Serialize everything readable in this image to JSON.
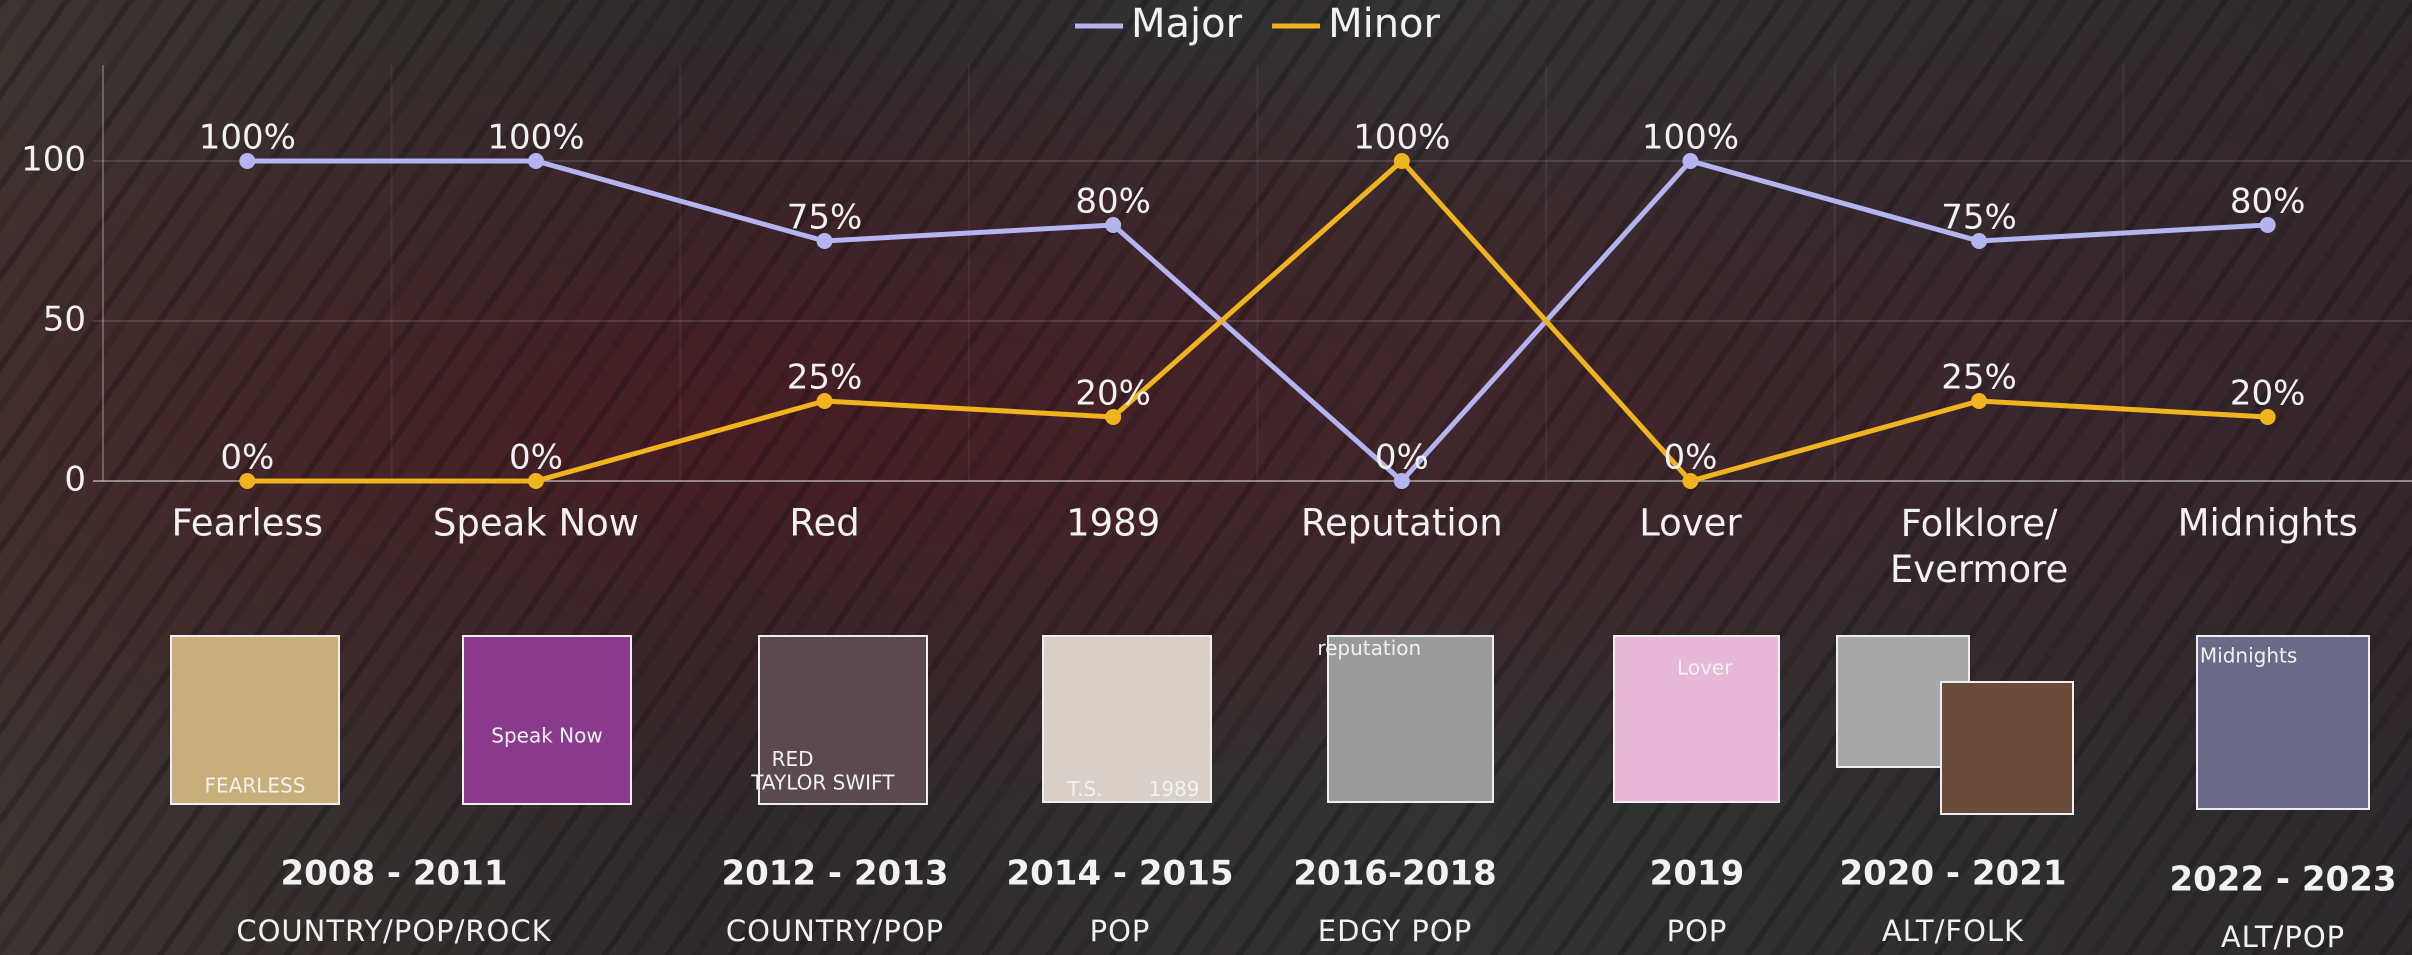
{
  "chart_data": {
    "type": "line",
    "categories": [
      "Fearless",
      "Speak Now",
      "Red",
      "1989",
      "Reputation",
      "Lover",
      "Folklore/\nEvermore",
      "Midnights"
    ],
    "series": [
      {
        "name": "Major",
        "color": "#b4b4f0",
        "values": [
          100,
          100,
          75,
          80,
          0,
          100,
          75,
          80
        ],
        "value_labels": [
          "100%",
          "100%",
          "75%",
          "80%",
          "0%",
          "100%",
          "75%",
          "80%"
        ]
      },
      {
        "name": "Minor",
        "color": "#f0b41e",
        "values": [
          0,
          0,
          25,
          20,
          100,
          0,
          25,
          20
        ],
        "value_labels": [
          "0%",
          "0%",
          "25%",
          "20%",
          "100%",
          "0%",
          "25%",
          "20%"
        ]
      }
    ],
    "ylim": [
      0,
      130
    ],
    "yticks": [
      0,
      50,
      100
    ],
    "grid": true,
    "legend": "top"
  },
  "covers": [
    {
      "texts": [
        "FEARLESS"
      ],
      "color": "#c8ae7a"
    },
    {
      "texts": [
        "Speak Now"
      ],
      "color": "#8a3a8c"
    },
    {
      "texts": [
        "RED",
        "TAYLOR SWIFT"
      ],
      "color": "#5a4a50"
    },
    {
      "texts": [
        "T.S.",
        "1989"
      ],
      "color": "#d8d0c8"
    },
    {
      "texts": [
        "reputation"
      ],
      "color": "#9a9a9a"
    },
    {
      "texts": [
        "Lover"
      ],
      "color": "#e8b8d8"
    },
    {
      "texts": [],
      "color": "#a8a8a8"
    },
    {
      "texts": [],
      "color": "#6a4a38"
    },
    {
      "texts": [
        "Midnights"
      ],
      "color": "#6a6a88"
    }
  ],
  "eras": [
    {
      "years": "2008 - 2011",
      "genre": "COUNTRY/POP/ROCK"
    },
    {
      "years": "2012 - 2013",
      "genre": "COUNTRY/POP"
    },
    {
      "years": "2014 - 2015",
      "genre": "POP"
    },
    {
      "years": "2016-2018",
      "genre": "EDGY POP"
    },
    {
      "years": "2019",
      "genre": "POP"
    },
    {
      "years": "2020 - 2021",
      "genre": "ALT/FOLK"
    },
    {
      "years": "2022 - 2023",
      "genre": "ALT/POP"
    }
  ]
}
